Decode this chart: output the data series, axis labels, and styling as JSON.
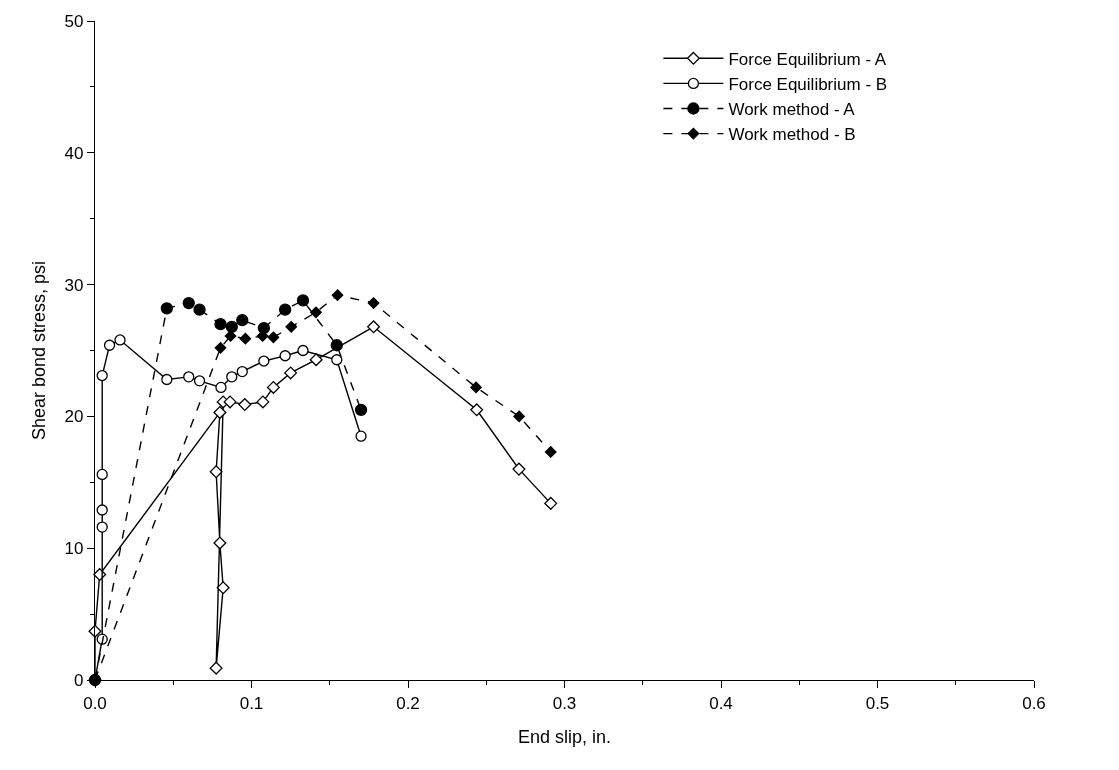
{
  "chart_data": {
    "type": "line",
    "xlabel": "End slip, in.",
    "ylabel": "Shear bond stress, psi",
    "xlim": [
      0,
      0.6
    ],
    "ylim": [
      0,
      50
    ],
    "xticks": [
      {
        "value": 0,
        "label": "0.0"
      },
      {
        "value": 0.05,
        "label": null
      },
      {
        "value": 0.1,
        "label": "0.1"
      },
      {
        "value": 0.15,
        "label": null
      },
      {
        "value": 0.2,
        "label": "0.2"
      },
      {
        "value": 0.25,
        "label": null
      },
      {
        "value": 0.3,
        "label": "0.3"
      },
      {
        "value": 0.35,
        "label": null
      },
      {
        "value": 0.4,
        "label": "0.4"
      },
      {
        "value": 0.45,
        "label": null
      },
      {
        "value": 0.5,
        "label": "0.5"
      },
      {
        "value": 0.55,
        "label": null
      },
      {
        "value": 0.6,
        "label": "0.6"
      }
    ],
    "yticks": [
      0,
      {
        "value": 5,
        "label": null
      },
      10,
      {
        "value": 15,
        "label": null
      },
      20,
      {
        "value": 25,
        "label": null
      },
      30,
      {
        "value": 35,
        "label": null
      },
      40,
      {
        "value": 45,
        "label": null
      },
      50
    ],
    "legend": "top right",
    "series": [
      {
        "name": "Force Equilibrium - A",
        "color": "#000000",
        "marker": "diamond",
        "line_style": "solid",
        "x": [
          0,
          0,
          0.003,
          0.0798,
          0.0774,
          0.0798,
          0.0819,
          0.0774,
          0.0819,
          0.0863,
          0.0957,
          0.1073,
          0.114,
          0.125,
          0.1413,
          0.178,
          0.2439,
          0.2709,
          0.2912
        ],
        "values": [
          0,
          3.7,
          8.0,
          20.3,
          15.8,
          10.4,
          7.0,
          0.9,
          21.1,
          21.1,
          20.9,
          21.1,
          22.2,
          23.3,
          24.3,
          26.8,
          20.5,
          16.0,
          13.4
        ]
      },
      {
        "name": "Force Equilibrium - B",
        "color": "#000000",
        "marker": "circle",
        "line_style": "solid",
        "x": [
          0,
          0.003,
          0.0046,
          0.0046,
          0.0046,
          0.0046,
          0.0046,
          0.0093,
          0.016,
          0.0459,
          0.0599,
          0.0668,
          0.0805,
          0.0874,
          0.0941,
          0.1079,
          0.1215,
          0.1329,
          0.1545,
          0.17
        ],
        "values": [
          0,
          null,
          3.1,
          11.6,
          12.9,
          15.6,
          23.1,
          25.4,
          25.8,
          22.8,
          23.0,
          22.7,
          22.2,
          23.0,
          23.4,
          24.2,
          24.6,
          25.0,
          24.3,
          18.5
        ]
      },
      {
        "name": "Work method - A",
        "color": "#000000",
        "marker": "circle",
        "line_style": "dashed",
        "x": [
          0,
          0.0459,
          0.0599,
          0.0668,
          0.0802,
          0.0874,
          0.0941,
          0.1079,
          0.1215,
          0.1329,
          0.1545,
          0.17
        ],
        "values": [
          0,
          28.2,
          28.6,
          28.1,
          27.0,
          26.8,
          27.3,
          26.7,
          28.1,
          28.8,
          25.4,
          20.5
        ]
      },
      {
        "name": "Work method - B",
        "color": "#000000",
        "marker": "diamond",
        "line_style": "dashed",
        "x": [
          0,
          0.0802,
          0.0866,
          0.0961,
          0.1071,
          0.114,
          0.1254,
          0.1412,
          0.155,
          0.178,
          0.2435,
          0.271,
          0.2912
        ],
        "values": [
          0,
          25.2,
          26.1,
          25.9,
          26.1,
          26.0,
          26.8,
          27.9,
          29.2,
          28.6,
          22.2,
          20.0,
          17.3
        ]
      }
    ]
  }
}
